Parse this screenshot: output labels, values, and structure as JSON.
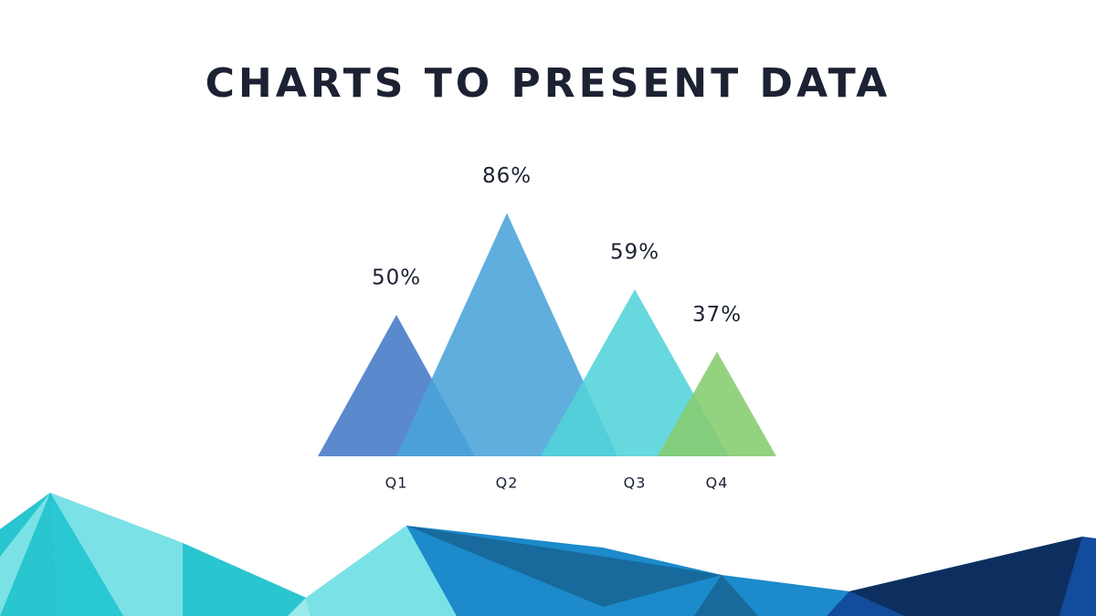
{
  "chart_data": {
    "type": "triangle",
    "title": "CHARTS TO PRESENT DATA",
    "categories": [
      "Q1",
      "Q2",
      "Q3",
      "Q4"
    ],
    "values": [
      50,
      86,
      59,
      37
    ],
    "value_labels": [
      "50%",
      "86%",
      "59%",
      "37%"
    ],
    "colors": [
      "#4479c7",
      "#4aa3d9",
      "#52d3d8",
      "#86cc6e"
    ]
  }
}
